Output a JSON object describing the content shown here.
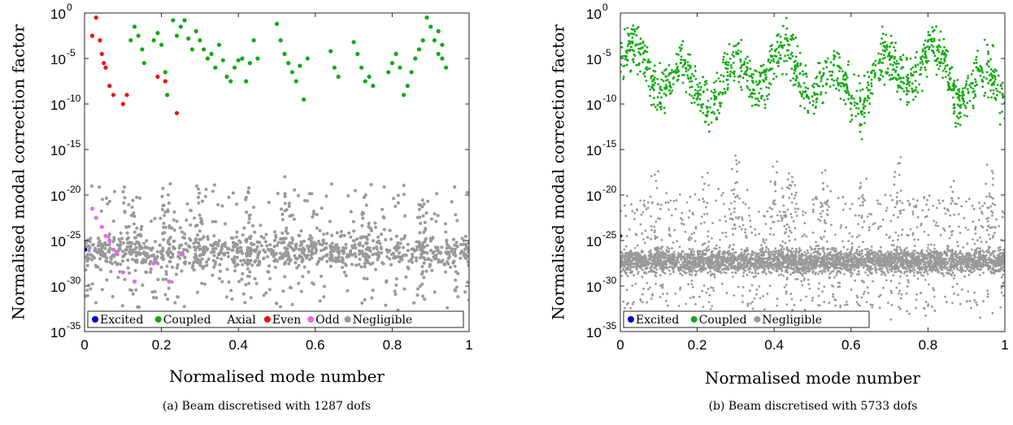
{
  "chart_data": [
    {
      "type": "scatter",
      "caption": "(a) Beam discretised with 1287 dofs",
      "xlabel": "Normalised mode number",
      "ylabel": "Normalised modal correction factor",
      "xlim": [
        0,
        1
      ],
      "ylim_exp": [
        -35,
        0
      ],
      "yscale": "log",
      "x_ticks": [
        "0",
        "0.2",
        "0.4",
        "0.6",
        "0.8",
        "1"
      ],
      "y_ticks": [
        {
          "base": "10",
          "exp": "0"
        },
        {
          "base": "10",
          "exp": "-5"
        },
        {
          "base": "10",
          "exp": "-10"
        },
        {
          "base": "10",
          "exp": "-15"
        },
        {
          "base": "10",
          "exp": "-20"
        },
        {
          "base": "10",
          "exp": "-25"
        },
        {
          "base": "10",
          "exp": "-30"
        },
        {
          "base": "10",
          "exp": "-35"
        }
      ],
      "legend_position": "bottom",
      "legend": [
        {
          "label": "Excited",
          "color": "#0000cc"
        },
        {
          "label": "Coupled",
          "color": "#11aa11"
        },
        {
          "label": "Axial",
          "color": null
        },
        {
          "label": "Even",
          "color": "#ee1111"
        },
        {
          "label": "Odd",
          "color": "#ee66ee"
        },
        {
          "label": "Negligible",
          "color": "#999999"
        }
      ],
      "series": [
        {
          "name": "Excited",
          "color": "#0000cc",
          "points": [
            [
              0.002,
              -26.0
            ]
          ]
        },
        {
          "name": "Coupled",
          "color": "#11aa11",
          "points": [
            [
              0.12,
              -3.0
            ],
            [
              0.13,
              -1.5
            ],
            [
              0.14,
              -2.5
            ],
            [
              0.15,
              -4.0
            ],
            [
              0.155,
              -5.5
            ],
            [
              0.18,
              -3.0
            ],
            [
              0.19,
              -2.2
            ],
            [
              0.2,
              -3.5
            ],
            [
              0.21,
              -6.5
            ],
            [
              0.215,
              -9.0
            ],
            [
              0.23,
              -0.8
            ],
            [
              0.24,
              -2.5
            ],
            [
              0.25,
              -1.5
            ],
            [
              0.26,
              -0.8
            ],
            [
              0.27,
              -2.8
            ],
            [
              0.28,
              -4.0
            ],
            [
              0.29,
              -2.0
            ],
            [
              0.3,
              -3.0
            ],
            [
              0.31,
              -4.0
            ],
            [
              0.32,
              -5.0
            ],
            [
              0.33,
              -4.5
            ],
            [
              0.34,
              -6.0
            ],
            [
              0.35,
              -3.5
            ],
            [
              0.36,
              -5.2
            ],
            [
              0.37,
              -7.0
            ],
            [
              0.38,
              -7.5
            ],
            [
              0.39,
              -6.0
            ],
            [
              0.4,
              -5.2
            ],
            [
              0.41,
              -5.0
            ],
            [
              0.42,
              -7.5
            ],
            [
              0.43,
              -5.5
            ],
            [
              0.44,
              -3.0
            ],
            [
              0.45,
              -5.0
            ],
            [
              0.5,
              -1.2
            ],
            [
              0.51,
              -3.0
            ],
            [
              0.52,
              -4.5
            ],
            [
              0.53,
              -5.5
            ],
            [
              0.54,
              -6.5
            ],
            [
              0.55,
              -7.5
            ],
            [
              0.56,
              -5.8
            ],
            [
              0.57,
              -9.5
            ],
            [
              0.58,
              -5.0
            ],
            [
              0.64,
              -4.2
            ],
            [
              0.65,
              -6.0
            ],
            [
              0.66,
              -7.0
            ],
            [
              0.7,
              -3.2
            ],
            [
              0.71,
              -4.5
            ],
            [
              0.72,
              -6.0
            ],
            [
              0.73,
              -7.5
            ],
            [
              0.74,
              -7.0
            ],
            [
              0.75,
              -8.0
            ],
            [
              0.79,
              -6.5
            ],
            [
              0.8,
              -5.5
            ],
            [
              0.81,
              -4.5
            ],
            [
              0.82,
              -6.0
            ],
            [
              0.83,
              -9.0
            ],
            [
              0.84,
              -8.0
            ],
            [
              0.85,
              -6.5
            ],
            [
              0.86,
              -5.0
            ],
            [
              0.87,
              -4.0
            ],
            [
              0.88,
              -3.0
            ],
            [
              0.89,
              -0.5
            ],
            [
              0.9,
              -1.5
            ],
            [
              0.91,
              -3.0
            ],
            [
              0.92,
              -4.5
            ],
            [
              0.93,
              -5.0
            ],
            [
              0.94,
              -6.0
            ],
            [
              0.92,
              -2.0
            ],
            [
              0.93,
              -3.5
            ]
          ]
        },
        {
          "name": "Even",
          "color": "#ee1111",
          "points": [
            [
              0.02,
              -2.5
            ],
            [
              0.03,
              -0.5
            ],
            [
              0.04,
              -3.0
            ],
            [
              0.045,
              -4.5
            ],
            [
              0.05,
              -5.5
            ],
            [
              0.055,
              -6.0
            ],
            [
              0.065,
              -8.0
            ],
            [
              0.075,
              -9.0
            ],
            [
              0.1,
              -10.0
            ],
            [
              0.11,
              -9.0
            ],
            [
              0.19,
              -7.0
            ],
            [
              0.21,
              -7.5
            ],
            [
              0.24,
              -11.0
            ]
          ]
        },
        {
          "name": "Odd",
          "color": "#ee66ee",
          "points": [
            [
              0.02,
              -21.5
            ],
            [
              0.03,
              -22.5
            ],
            [
              0.045,
              -23.5
            ],
            [
              0.055,
              -24.5
            ],
            [
              0.065,
              -25.0
            ],
            [
              0.075,
              -26.0
            ],
            [
              0.085,
              -26.5
            ],
            [
              0.1,
              -28.5
            ],
            [
              0.13,
              -29.5
            ],
            [
              0.18,
              -27.5
            ],
            [
              0.22,
              -29.5
            ],
            [
              0.25,
              -26.5
            ]
          ]
        }
      ]
    },
    {
      "type": "scatter",
      "caption": "(b) Beam discretised with 5733 dofs",
      "xlabel": "Normalised mode number",
      "ylabel": "Normalised modal correction factor",
      "xlim": [
        0,
        1
      ],
      "ylim_exp": [
        -35,
        0
      ],
      "yscale": "log",
      "x_ticks": [
        "0",
        "0.2",
        "0.4",
        "0.6",
        "0.8",
        "1"
      ],
      "y_ticks": [
        {
          "base": "10",
          "exp": "0"
        },
        {
          "base": "10",
          "exp": "-5"
        },
        {
          "base": "10",
          "exp": "-10"
        },
        {
          "base": "10",
          "exp": "-15"
        },
        {
          "base": "10",
          "exp": "-20"
        },
        {
          "base": "10",
          "exp": "-25"
        },
        {
          "base": "10",
          "exp": "-30"
        },
        {
          "base": "10",
          "exp": "-35"
        }
      ],
      "legend_position": "bottom-left",
      "legend": [
        {
          "label": "Excited",
          "color": "#0000cc"
        },
        {
          "label": "Coupled",
          "color": "#11aa11"
        },
        {
          "label": "Negligible",
          "color": "#999999"
        }
      ],
      "series": [
        {
          "name": "Excited",
          "color": "#0000cc",
          "points": [
            [
              0.001,
              -24.5
            ]
          ]
        }
      ]
    }
  ]
}
